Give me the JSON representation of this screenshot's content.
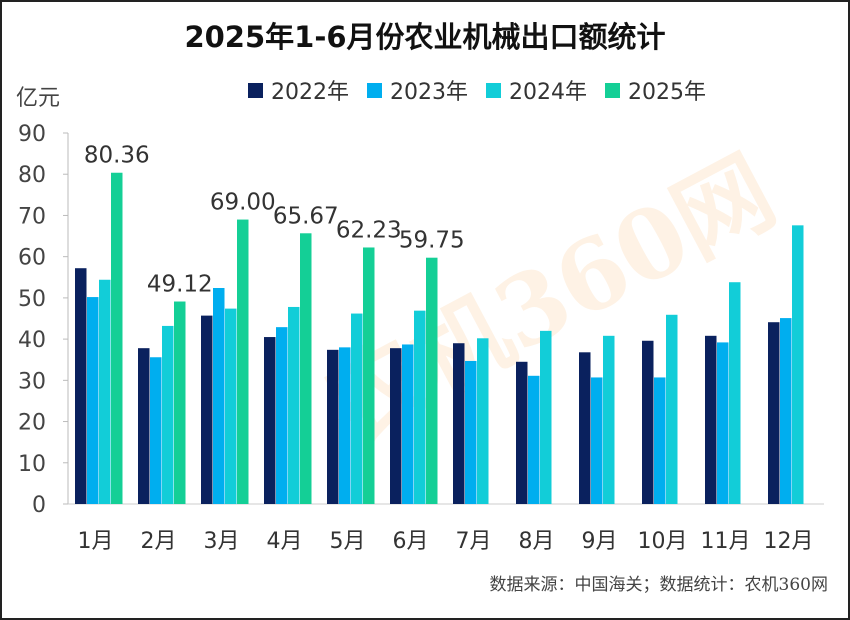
{
  "chart_data": {
    "type": "bar",
    "title": "2025年1-6月份农业机械出口额统计",
    "ylabel": "亿元",
    "ylim": [
      0,
      90
    ],
    "yticks": [
      0,
      10,
      20,
      30,
      40,
      50,
      60,
      70,
      80,
      90
    ],
    "grid": false,
    "legend": "top",
    "categories": [
      "1月",
      "2月",
      "3月",
      "4月",
      "5月",
      "6月",
      "7月",
      "8月",
      "9月",
      "10月",
      "11月",
      "12月"
    ],
    "series": [
      {
        "name": "2022年",
        "color": "#0a215e",
        "values": [
          57.2,
          37.8,
          45.7,
          40.5,
          37.4,
          37.8,
          39.0,
          34.5,
          36.8,
          39.6,
          40.8,
          44.1
        ]
      },
      {
        "name": "2023年",
        "color": "#00aeef",
        "values": [
          50.2,
          35.6,
          52.4,
          42.9,
          38.0,
          38.7,
          34.7,
          31.1,
          30.7,
          30.7,
          39.2,
          45.1
        ]
      },
      {
        "name": "2024年",
        "color": "#12cdd8",
        "values": [
          54.4,
          43.2,
          47.4,
          47.8,
          46.2,
          46.9,
          40.2,
          42.0,
          40.8,
          45.9,
          53.8,
          67.6
        ]
      },
      {
        "name": "2025年",
        "color": "#14cf96",
        "values": [
          80.36,
          49.12,
          69.0,
          65.67,
          62.23,
          59.75,
          null,
          null,
          null,
          null,
          null,
          null
        ]
      }
    ],
    "data_labels": [
      "80.36",
      "49.12",
      "69.00",
      "65.67",
      "62.23",
      "59.75"
    ]
  },
  "source": "数据来源：中国海关；数据统计：农机360网",
  "watermark": "农机360网"
}
